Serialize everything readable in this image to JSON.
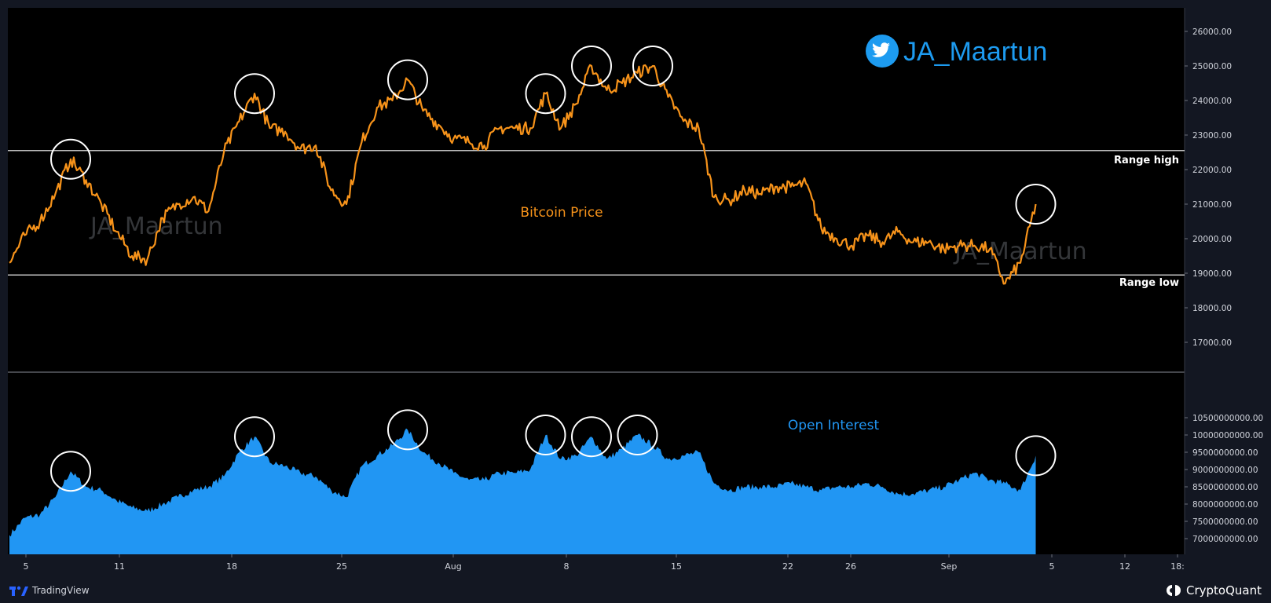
{
  "colors": {
    "background": "#000000",
    "frame": "#131722",
    "price": "#f7931a",
    "open_interest": "#2196f3",
    "range_line": "#ffffff",
    "circle": "#ffffff",
    "twitter": "#1d9bf0"
  },
  "twitter": {
    "icon": "twitter-bird-icon",
    "handle": "JA_Maartun"
  },
  "watermarks": [
    "JA_Maartun",
    "JA_Maartun"
  ],
  "footer": {
    "left": {
      "icon": "tradingview-logo-icon",
      "label": "TradingView"
    },
    "right": {
      "icon": "cryptoquant-logo-icon",
      "label": "CryptoQuant"
    }
  },
  "chart_data": [
    {
      "type": "line",
      "title": "",
      "series_label": "Bitcoin Price",
      "ylim": [
        16500,
        26500
      ],
      "y_ticks": [
        "26000.00",
        "25000.00",
        "24000.00",
        "23000.00",
        "22000.00",
        "21000.00",
        "20000.00",
        "19000.00",
        "18000.00",
        "17000.00"
      ],
      "x_ticks": [
        "5",
        "11",
        "18",
        "25",
        "Aug",
        "8",
        "15",
        "22",
        "26",
        "Sep",
        "5",
        "12",
        "18:"
      ],
      "reference_lines": [
        {
          "label": "Range high",
          "value": 22550
        },
        {
          "label": "Range low",
          "value": 18950
        }
      ],
      "highlight_circles": [
        {
          "date": "2022-07-08",
          "value": 22300
        },
        {
          "date": "2022-07-20",
          "value": 24200
        },
        {
          "date": "2022-07-30",
          "value": 24600
        },
        {
          "date": "2022-08-08",
          "value": 24200
        },
        {
          "date": "2022-08-11",
          "value": 25000
        },
        {
          "date": "2022-08-15",
          "value": 25000
        },
        {
          "date": "2022-09-09",
          "value": 21000
        }
      ],
      "series": [
        {
          "name": "Bitcoin Price",
          "points": [
            [
              "2022-07-04",
              19300
            ],
            [
              "2022-07-05",
              20100
            ],
            [
              "2022-07-06",
              20500
            ],
            [
              "2022-07-07",
              21300
            ],
            [
              "2022-07-08",
              22300
            ],
            [
              "2022-07-09",
              21700
            ],
            [
              "2022-07-10",
              21000
            ],
            [
              "2022-07-11",
              20200
            ],
            [
              "2022-07-12",
              19500
            ],
            [
              "2022-07-13",
              19400
            ],
            [
              "2022-07-14",
              20600
            ],
            [
              "2022-07-15",
              21000
            ],
            [
              "2022-07-16",
              21200
            ],
            [
              "2022-07-17",
              20800
            ],
            [
              "2022-07-18",
              22500
            ],
            [
              "2022-07-19",
              23400
            ],
            [
              "2022-07-20",
              24200
            ],
            [
              "2022-07-21",
              23200
            ],
            [
              "2022-07-22",
              23100
            ],
            [
              "2022-07-23",
              22600
            ],
            [
              "2022-07-24",
              22700
            ],
            [
              "2022-07-25",
              21400
            ],
            [
              "2022-07-26",
              21000
            ],
            [
              "2022-07-27",
              22800
            ],
            [
              "2022-07-28",
              23800
            ],
            [
              "2022-07-29",
              24000
            ],
            [
              "2022-07-30",
              24600
            ],
            [
              "2022-07-31",
              23700
            ],
            [
              "2022-08-01",
              23300
            ],
            [
              "2022-08-02",
              22900
            ],
            [
              "2022-08-03",
              22800
            ],
            [
              "2022-08-04",
              22700
            ],
            [
              "2022-08-05",
              23200
            ],
            [
              "2022-08-06",
              23200
            ],
            [
              "2022-08-07",
              23200
            ],
            [
              "2022-08-08",
              24200
            ],
            [
              "2022-08-09",
              23200
            ],
            [
              "2022-08-10",
              23900
            ],
            [
              "2022-08-11",
              25000
            ],
            [
              "2022-08-12",
              24300
            ],
            [
              "2022-08-13",
              24500
            ],
            [
              "2022-08-14",
              24800
            ],
            [
              "2022-08-15",
              25000
            ],
            [
              "2022-08-16",
              24100
            ],
            [
              "2022-08-17",
              23400
            ],
            [
              "2022-08-18",
              23200
            ],
            [
              "2022-08-19",
              21200
            ],
            [
              "2022-08-20",
              21100
            ],
            [
              "2022-08-21",
              21400
            ],
            [
              "2022-08-22",
              21300
            ],
            [
              "2022-08-23",
              21500
            ],
            [
              "2022-08-24",
              21500
            ],
            [
              "2022-08-25",
              21600
            ],
            [
              "2022-08-26",
              20300
            ],
            [
              "2022-08-27",
              20000
            ],
            [
              "2022-08-28",
              19800
            ],
            [
              "2022-08-29",
              20100
            ],
            [
              "2022-08-30",
              19900
            ],
            [
              "2022-08-31",
              20200
            ],
            [
              "2022-09-01",
              19900
            ],
            [
              "2022-09-02",
              19900
            ],
            [
              "2022-09-03",
              19700
            ],
            [
              "2022-09-04",
              19800
            ],
            [
              "2022-09-05",
              19800
            ],
            [
              "2022-09-06",
              19700
            ],
            [
              "2022-09-07",
              18700
            ],
            [
              "2022-09-08",
              19300
            ],
            [
              "2022-09-09",
              21000
            ]
          ]
        }
      ]
    },
    {
      "type": "area",
      "title": "",
      "series_label": "Open Interest",
      "ylim": [
        6800000000,
        10550000000
      ],
      "y_ticks": [
        "10500000000.00",
        "10000000000.00",
        "9500000000.00",
        "9000000000.00",
        "8500000000.00",
        "8000000000.00",
        "7500000000.00",
        "7000000000.00"
      ],
      "highlight_circles": [
        {
          "date": "2022-07-08",
          "value": 8950000000
        },
        {
          "date": "2022-07-20",
          "value": 9950000000
        },
        {
          "date": "2022-07-30",
          "value": 10150000000
        },
        {
          "date": "2022-08-08",
          "value": 10000000000
        },
        {
          "date": "2022-08-11",
          "value": 9950000000
        },
        {
          "date": "2022-08-14",
          "value": 10000000000
        },
        {
          "date": "2022-09-09",
          "value": 9400000000
        }
      ],
      "series": [
        {
          "name": "Open Interest",
          "points": [
            [
              "2022-07-04",
              7100000000
            ],
            [
              "2022-07-05",
              7600000000
            ],
            [
              "2022-07-06",
              7700000000
            ],
            [
              "2022-07-07",
              8200000000
            ],
            [
              "2022-07-08",
              8950000000
            ],
            [
              "2022-07-09",
              8500000000
            ],
            [
              "2022-07-10",
              8400000000
            ],
            [
              "2022-07-11",
              8100000000
            ],
            [
              "2022-07-12",
              7900000000
            ],
            [
              "2022-07-13",
              7800000000
            ],
            [
              "2022-07-14",
              8000000000
            ],
            [
              "2022-07-15",
              8200000000
            ],
            [
              "2022-07-16",
              8400000000
            ],
            [
              "2022-07-17",
              8500000000
            ],
            [
              "2022-07-18",
              8800000000
            ],
            [
              "2022-07-19",
              9500000000
            ],
            [
              "2022-07-20",
              9950000000
            ],
            [
              "2022-07-21",
              9200000000
            ],
            [
              "2022-07-22",
              9100000000
            ],
            [
              "2022-07-23",
              8900000000
            ],
            [
              "2022-07-24",
              8800000000
            ],
            [
              "2022-07-25",
              8400000000
            ],
            [
              "2022-07-26",
              8200000000
            ],
            [
              "2022-07-27",
              9100000000
            ],
            [
              "2022-07-28",
              9400000000
            ],
            [
              "2022-07-29",
              9700000000
            ],
            [
              "2022-07-30",
              10150000000
            ],
            [
              "2022-07-31",
              9500000000
            ],
            [
              "2022-08-01",
              9200000000
            ],
            [
              "2022-08-02",
              8900000000
            ],
            [
              "2022-08-03",
              8700000000
            ],
            [
              "2022-08-04",
              8700000000
            ],
            [
              "2022-08-05",
              8900000000
            ],
            [
              "2022-08-06",
              8900000000
            ],
            [
              "2022-08-07",
              9000000000
            ],
            [
              "2022-08-08",
              10000000000
            ],
            [
              "2022-08-09",
              9300000000
            ],
            [
              "2022-08-10",
              9400000000
            ],
            [
              "2022-08-11",
              9950000000
            ],
            [
              "2022-08-12",
              9300000000
            ],
            [
              "2022-08-13",
              9600000000
            ],
            [
              "2022-08-14",
              10000000000
            ],
            [
              "2022-08-15",
              9700000000
            ],
            [
              "2022-08-16",
              9300000000
            ],
            [
              "2022-08-17",
              9400000000
            ],
            [
              "2022-08-18",
              9500000000
            ],
            [
              "2022-08-19",
              8600000000
            ],
            [
              "2022-08-20",
              8400000000
            ],
            [
              "2022-08-21",
              8500000000
            ],
            [
              "2022-08-22",
              8500000000
            ],
            [
              "2022-08-23",
              8500000000
            ],
            [
              "2022-08-24",
              8600000000
            ],
            [
              "2022-08-25",
              8500000000
            ],
            [
              "2022-08-26",
              8400000000
            ],
            [
              "2022-08-27",
              8500000000
            ],
            [
              "2022-08-28",
              8500000000
            ],
            [
              "2022-08-29",
              8600000000
            ],
            [
              "2022-08-30",
              8500000000
            ],
            [
              "2022-08-31",
              8300000000
            ],
            [
              "2022-09-01",
              8300000000
            ],
            [
              "2022-09-02",
              8400000000
            ],
            [
              "2022-09-03",
              8500000000
            ],
            [
              "2022-09-04",
              8700000000
            ],
            [
              "2022-09-05",
              8900000000
            ],
            [
              "2022-09-06",
              8700000000
            ],
            [
              "2022-09-07",
              8600000000
            ],
            [
              "2022-09-08",
              8400000000
            ],
            [
              "2022-09-09",
              9400000000
            ]
          ]
        }
      ]
    }
  ]
}
